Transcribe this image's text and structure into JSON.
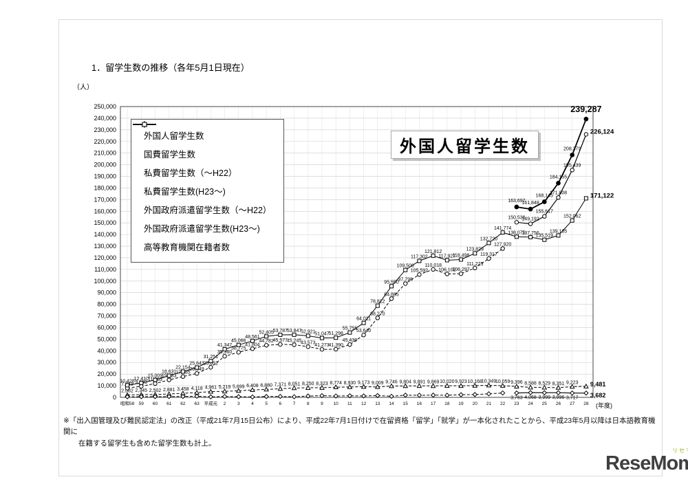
{
  "page": {
    "title": "1．留学生数の推移（各年5月1日現在）",
    "y_unit": "（人）",
    "x_unit": "(年度)",
    "big_label": "外国人留学生数",
    "footnote_line1": "※「出入国管理及び難民認定法」の改正（平成21年7月15日公布）により、平成22年7月1日付けで在留資格「留学」「就学」が一本化されたことから、平成23年5月以降は日本語教育機関に",
    "footnote_line2": "在籍する留学生も含めた留学生数も計上。",
    "logo": {
      "text": "ReseMom",
      "dot": ".",
      "kana": "リセマム",
      "accent": "#8cb808",
      "text_color": "#3f3f3f"
    }
  },
  "chart_data": {
    "type": "line",
    "title": "外国人留学生数",
    "ylim": [
      0,
      250000
    ],
    "ytick": 10000,
    "grid": true,
    "legend_position": "top-left-inside",
    "categories": [
      "昭和58",
      "59",
      "60",
      "61",
      "62",
      "63",
      "平成元",
      "2",
      "3",
      "4",
      "5",
      "6",
      "7",
      "8",
      "9",
      "10",
      "11",
      "12",
      "13",
      "14",
      "15",
      "16",
      "17",
      "18",
      "19",
      "20",
      "21",
      "22",
      "23",
      "24",
      "25",
      "26",
      "27",
      "28"
    ],
    "series": [
      {
        "name": "外国人留学生数",
        "marker": "circle-filled",
        "dashed": false,
        "width": 1.8,
        "show_labels": true,
        "label_dy": -7,
        "bold_last": true,
        "last_anchor": "middle",
        "last_dx": 0,
        "last_dy": -10,
        "last_size": 12.5,
        "values": [
          null,
          null,
          null,
          null,
          null,
          null,
          null,
          null,
          null,
          null,
          null,
          null,
          null,
          null,
          null,
          null,
          null,
          null,
          null,
          null,
          null,
          null,
          null,
          null,
          null,
          null,
          null,
          null,
          163697,
          161848,
          168145,
          184155,
          208379,
          239287
        ]
      },
      {
        "name": "国費留学生数",
        "marker": "triangle-open",
        "dashed": true,
        "width": 1,
        "show_labels": true,
        "label_dy": -4,
        "bold_last": true,
        "last_anchor": "start",
        "last_dx": 6,
        "last_dy": 0,
        "last_size": 9,
        "values": [
          2082,
          2345,
          2502,
          2881,
          3458,
          4118,
          4961,
          5219,
          5699,
          6408,
          6880,
          7371,
          8051,
          8250,
          8323,
          8774,
          8930,
          9173,
          9009,
          9746,
          9804,
          9891,
          9869,
          10020,
          9923,
          10168,
          10349,
          10059,
          9396,
          8588,
          8529,
          8351,
          9223,
          9481
        ]
      },
      {
        "name": "私費留学生数（～H22）",
        "marker": "circle-open",
        "dashed": true,
        "width": 1,
        "show_labels": true,
        "label_dy": -4,
        "bold_last": false,
        "values": [
          7849,
          9489,
          11863,
          15033,
          17885,
          20549,
          25852,
          35360,
          38775,
          41804,
          44782,
          45577,
          45245,
          43573,
          41273,
          41390,
          45439,
          53640,
          68270,
          84885,
          97798,
          105592,
          110018,
          106102,
          106297,
          111225,
          119317,
          127920,
          null,
          null,
          null,
          null,
          null,
          null
        ]
      },
      {
        "name": "私費留学生数(H23～)",
        "marker": "circle-open",
        "dashed": false,
        "width": 1.2,
        "show_labels": true,
        "label_dy": -5,
        "bold_last": true,
        "last_anchor": "start",
        "last_dx": 6,
        "last_dy": -1,
        "last_size": 9.5,
        "values": [
          null,
          null,
          null,
          null,
          null,
          null,
          null,
          null,
          null,
          null,
          null,
          null,
          null,
          null,
          null,
          null,
          null,
          null,
          null,
          null,
          null,
          null,
          null,
          null,
          null,
          null,
          null,
          null,
          150538,
          149192,
          155617,
          171808,
          195439,
          226124
        ]
      },
      {
        "name": "外国政府派遣留学生数（～H22）",
        "marker": "diamond-open",
        "dashed": true,
        "width": 1,
        "show_labels": false,
        "values": [
          497,
          576,
          644,
          717,
          811,
          976,
          438,
          768,
          592,
          349,
          743,
          839,
          551,
          1098,
          1451,
          1134,
          1386,
          1198,
          1533,
          919,
          1906,
          1819,
          1925,
          1805,
          2278,
          2436,
          3054,
          3795,
          null,
          null,
          null,
          null,
          null,
          null
        ]
      },
      {
        "name": "外国政府派遣留学生数(H23～)",
        "marker": "diamond-open",
        "dashed": false,
        "width": 1.2,
        "show_labels": true,
        "label_dy": 9,
        "bold_last": true,
        "last_anchor": "start",
        "last_dx": 6,
        "last_dy": 6,
        "last_size": 9,
        "values": [
          null,
          null,
          null,
          null,
          null,
          null,
          null,
          null,
          null,
          null,
          null,
          null,
          null,
          null,
          null,
          null,
          null,
          null,
          null,
          null,
          null,
          null,
          null,
          null,
          null,
          null,
          null,
          null,
          3763,
          4068,
          3999,
          3996,
          3717,
          3682
        ]
      },
      {
        "name": "高等教育機関在籍者数",
        "marker": "square-open",
        "dashed": false,
        "width": 1,
        "show_labels": true,
        "label_dy": -4,
        "bold_last": true,
        "last_anchor": "start",
        "last_dx": 6,
        "last_dy": -1,
        "last_size": 9.5,
        "values": [
          10428,
          12410,
          15009,
          18631,
          22154,
          25643,
          31251,
          41347,
          45066,
          48561,
          52405,
          53787,
          53847,
          52921,
          51047,
          51298,
          55755,
          64011,
          78812,
          95550,
          109508,
          117302,
          121812,
          117927,
          118498,
          123829,
          132720,
          141774,
          138075,
          137756,
          135519,
          139185,
          152062,
          171122
        ]
      }
    ]
  }
}
